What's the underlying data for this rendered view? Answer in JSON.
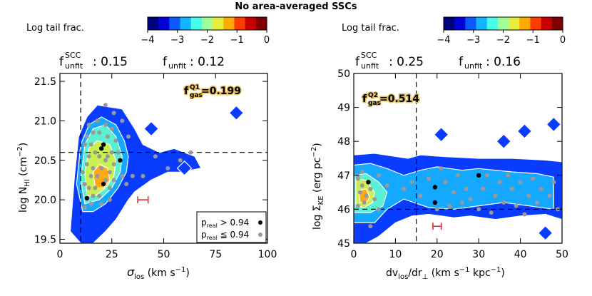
{
  "figure_title": "No area-averaged SSCs",
  "colorbar": {
    "label": "Log tail frac.",
    "ticks": [
      "−4",
      "−3",
      "−2",
      "−1",
      "0"
    ],
    "colors": [
      "#00007f",
      "#0000d8",
      "#0a5aff",
      "#14b4ff",
      "#46ffe6",
      "#a0ff96",
      "#e6f03c",
      "#ffaa00",
      "#ff3c00",
      "#c80000",
      "#7f0000"
    ]
  },
  "panels": [
    {
      "id": "left",
      "funfit_scc_label": "f",
      "funfit_scc_sup": "SCC",
      "funfit_scc_sub": "unfit",
      "funfit_scc_value": ": 0.15",
      "funfit_label": "f",
      "funfit_sub": "unfit",
      "funfit_value": ": 0.12",
      "fgas_label": "f",
      "fgas_sup": "Q1",
      "fgas_sub": "gas",
      "fgas_value": "=0.199",
      "legend": {
        "row1_main": "p",
        "row1_sub": "real",
        "row1_rest": " > 0.94",
        "row2_main": "p",
        "row2_sub": "real",
        "row2_rest": " ≦ 0.94"
      }
    },
    {
      "id": "right",
      "funfit_scc_label": "f",
      "funfit_scc_sup": "SCC",
      "funfit_scc_sub": "unfit",
      "funfit_scc_value": ": 0.25",
      "funfit_label": "f",
      "funfit_sub": "unfit",
      "funfit_value": ": 0.16",
      "fgas_label": "f",
      "fgas_sup": "Q2",
      "fgas_sub": "gas",
      "fgas_value": "=0.514"
    }
  ],
  "chart_data": [
    {
      "type": "scatter",
      "title": "",
      "xlabel": "σ_los (km s⁻¹)",
      "ylabel": "log N_HI (cm⁻²)",
      "xlabel_main": "σ",
      "xlabel_sub": "los",
      "xlabel_rest": " (km s",
      "xlabel_sup": "−1",
      "xlabel_close": ")",
      "ylabel_main": "log N",
      "ylabel_sub": "HI",
      "ylabel_rest": " (cm",
      "ylabel_sup": "−2",
      "ylabel_close": ")",
      "xlim": [
        0,
        100
      ],
      "ylim": [
        19.45,
        21.6
      ],
      "xticks": [
        0,
        25,
        50,
        75,
        100
      ],
      "xtick_labels": [
        "0",
        "25",
        "50",
        "75",
        "100"
      ],
      "yticks": [
        19.5,
        20.0,
        20.5,
        21.0,
        21.5
      ],
      "ytick_labels": [
        "19.5",
        "20.0",
        "20.5",
        "21.0",
        "21.5"
      ],
      "dashed_x": 10,
      "dashed_y": 20.6,
      "error_bar": {
        "x": 40,
        "y": 20.0,
        "xerr": 2.5
      },
      "contours": [
        {
          "level": -4.0,
          "poly": [
            [
              10,
              19.45
            ],
            [
              5,
              19.6
            ],
            [
              7,
              20.3
            ],
            [
              9,
              20.8
            ],
            [
              13,
              21.05
            ],
            [
              18,
              21.2
            ],
            [
              30,
              21.15
            ],
            [
              36,
              20.9
            ],
            [
              40,
              20.7
            ],
            [
              48,
              20.6
            ],
            [
              55,
              20.65
            ],
            [
              65,
              20.55
            ],
            [
              68,
              20.4
            ],
            [
              58,
              20.35
            ],
            [
              52,
              20.35
            ],
            [
              44,
              20.25
            ],
            [
              36,
              20.1
            ],
            [
              33,
              20.0
            ],
            [
              27,
              19.75
            ],
            [
              22,
              19.6
            ],
            [
              16,
              19.45
            ]
          ]
        },
        {
          "level": -3.0,
          "poly": [
            [
              11,
              19.85
            ],
            [
              8,
              20.2
            ],
            [
              10,
              20.7
            ],
            [
              14,
              20.95
            ],
            [
              20,
              21.05
            ],
            [
              27,
              20.95
            ],
            [
              31,
              20.75
            ],
            [
              33,
              20.55
            ],
            [
              32,
              20.35
            ],
            [
              28,
              20.15
            ],
            [
              22,
              19.95
            ],
            [
              16,
              19.85
            ]
          ]
        },
        {
          "level": -2.5,
          "poly": [
            [
              12,
              19.95
            ],
            [
              10,
              20.25
            ],
            [
              12,
              20.7
            ],
            [
              16,
              20.9
            ],
            [
              22,
              20.95
            ],
            [
              27,
              20.8
            ],
            [
              30,
              20.55
            ],
            [
              29,
              20.35
            ],
            [
              25,
              20.15
            ],
            [
              19,
              20.0
            ]
          ]
        },
        {
          "level": -2.0,
          "poly": [
            [
              13,
              20.05
            ],
            [
              12,
              20.35
            ],
            [
              14,
              20.65
            ],
            [
              18,
              20.75
            ],
            [
              24,
              20.7
            ],
            [
              27,
              20.5
            ],
            [
              26,
              20.3
            ],
            [
              22,
              20.15
            ],
            [
              17,
              20.05
            ]
          ]
        },
        {
          "level": -1.5,
          "poly": [
            [
              17,
              20.15
            ],
            [
              16,
              20.35
            ],
            [
              19,
              20.45
            ],
            [
              23,
              20.4
            ],
            [
              24,
              20.25
            ],
            [
              21,
              20.15
            ]
          ]
        }
      ],
      "isolated_cells": [
        {
          "x": 85,
          "y": 21.1,
          "level": -4.0
        },
        {
          "x": 44,
          "y": 20.9,
          "level": -4.0
        },
        {
          "x": 60,
          "y": 20.4,
          "level": -4.0
        }
      ],
      "points_high": [
        [
          20,
          20.65
        ],
        [
          21,
          20.7
        ],
        [
          29,
          20.5
        ],
        [
          13,
          20.02
        ],
        [
          21,
          20.2
        ]
      ],
      "points_low": [
        [
          22,
          21.2
        ],
        [
          26,
          21.1
        ],
        [
          30,
          21.0
        ],
        [
          18,
          21.0
        ],
        [
          22,
          20.95
        ],
        [
          25,
          20.9
        ],
        [
          14,
          20.95
        ],
        [
          16,
          20.85
        ],
        [
          19,
          20.85
        ],
        [
          13,
          20.8
        ],
        [
          23,
          20.8
        ],
        [
          27,
          20.75
        ],
        [
          12,
          20.7
        ],
        [
          15,
          20.7
        ],
        [
          17,
          20.6
        ],
        [
          25,
          20.6
        ],
        [
          28,
          20.6
        ],
        [
          14,
          20.55
        ],
        [
          19,
          20.55
        ],
        [
          22,
          20.5
        ],
        [
          26,
          20.45
        ],
        [
          13,
          20.45
        ],
        [
          16,
          20.4
        ],
        [
          20,
          20.4
        ],
        [
          24,
          20.35
        ],
        [
          11,
          20.35
        ],
        [
          15,
          20.3
        ],
        [
          18,
          20.3
        ],
        [
          22,
          20.25
        ],
        [
          26,
          20.25
        ],
        [
          12,
          20.2
        ],
        [
          14,
          20.15
        ],
        [
          17,
          20.15
        ],
        [
          24,
          20.15
        ],
        [
          16,
          20.05
        ],
        [
          19,
          20.05
        ],
        [
          12,
          19.9
        ],
        [
          15,
          19.95
        ],
        [
          32,
          20.2
        ],
        [
          35,
          20.3
        ],
        [
          40,
          20.3
        ],
        [
          46,
          20.55
        ],
        [
          52,
          20.4
        ],
        [
          58,
          20.5
        ],
        [
          63,
          20.6
        ],
        [
          33,
          20.8
        ],
        [
          30,
          20.3
        ],
        [
          24,
          20.0
        ],
        [
          20,
          19.95
        ],
        [
          23,
          20.55
        ]
      ]
    },
    {
      "type": "scatter",
      "title": "",
      "xlabel": "dv_los/dr_⊥ (km s⁻¹ kpc⁻¹)",
      "ylabel": "log Σ_KE (erg pc⁻²)",
      "xlabel_main": "dv",
      "xlabel_sub": "los",
      "xlabel_mid": "/dr",
      "xlabel_sub2": "⊥",
      "xlabel_rest": " (km s",
      "xlabel_sup": "−1",
      "xlabel_rest2": " kpc",
      "xlabel_sup2": "−1",
      "xlabel_close": ")",
      "ylabel_main": "log Σ",
      "ylabel_sub": "KE",
      "ylabel_rest": " (erg pc",
      "ylabel_sup": "−2",
      "ylabel_close": ")",
      "xlim": [
        0,
        50
      ],
      "ylim": [
        45.0,
        50.0
      ],
      "xticks": [
        0,
        10,
        20,
        30,
        40,
        50
      ],
      "xtick_labels": [
        "0",
        "10",
        "20",
        "30",
        "40",
        "50"
      ],
      "yticks": [
        45,
        46,
        47,
        48,
        49,
        50
      ],
      "ytick_labels": [
        "45",
        "46",
        "47",
        "48",
        "49",
        "50"
      ],
      "dashed_x": 15,
      "dashed_y": 46.0,
      "error_bar": {
        "x": 20,
        "y": 45.5,
        "xerr": 1.0
      },
      "contours": [
        {
          "level": -4.0,
          "poly": [
            [
              0,
              45.0
            ],
            [
              0,
              47.6
            ],
            [
              5,
              47.65
            ],
            [
              13,
              47.5
            ],
            [
              16,
              47.6
            ],
            [
              22,
              47.55
            ],
            [
              30,
              47.5
            ],
            [
              38,
              47.5
            ],
            [
              46,
              47.45
            ],
            [
              50,
              47.4
            ],
            [
              50,
              45.7
            ],
            [
              46,
              45.85
            ],
            [
              40,
              45.8
            ],
            [
              34,
              45.7
            ],
            [
              28,
              45.8
            ],
            [
              24,
              45.75
            ],
            [
              18,
              45.85
            ],
            [
              14,
              45.8
            ],
            [
              10,
              45.6
            ],
            [
              6,
              45.2
            ],
            [
              3,
              45.0
            ]
          ]
        },
        {
          "level": -3.0,
          "poly": [
            [
              0,
              45.6
            ],
            [
              0,
              47.3
            ],
            [
              4,
              47.35
            ],
            [
              8,
              47.2
            ],
            [
              12,
              47.0
            ],
            [
              16,
              47.15
            ],
            [
              20,
              47.25
            ],
            [
              26,
              47.15
            ],
            [
              30,
              47.2
            ],
            [
              38,
              47.1
            ],
            [
              44,
              47.05
            ],
            [
              48,
              46.95
            ],
            [
              48,
              46.0
            ],
            [
              42,
              46.1
            ],
            [
              36,
              46.2
            ],
            [
              30,
              46.1
            ],
            [
              24,
              46.0
            ],
            [
              18,
              46.05
            ],
            [
              12,
              46.3
            ],
            [
              8,
              46.0
            ],
            [
              5,
              45.6
            ]
          ]
        },
        {
          "level": -2.5,
          "poly": [
            [
              0,
              45.9
            ],
            [
              0,
              47.0
            ],
            [
              3,
              47.05
            ],
            [
              6,
              46.8
            ],
            [
              8,
              46.5
            ],
            [
              7,
              46.1
            ],
            [
              4,
              45.9
            ]
          ]
        },
        {
          "level": -2.0,
          "poly": [
            [
              0.5,
              46.1
            ],
            [
              0.5,
              46.9
            ],
            [
              3,
              46.85
            ],
            [
              5,
              46.5
            ],
            [
              4.5,
              46.2
            ],
            [
              2.5,
              46.05
            ]
          ]
        },
        {
          "level": -1.5,
          "poly": [
            [
              1.5,
              46.2
            ],
            [
              1.2,
              46.55
            ],
            [
              3,
              46.6
            ],
            [
              3.8,
              46.35
            ],
            [
              3,
              46.2
            ]
          ]
        }
      ],
      "isolated_cells": [
        {
          "x": 21,
          "y": 48.2,
          "level": -4.0
        },
        {
          "x": 36,
          "y": 48.0,
          "level": -4.0
        },
        {
          "x": 41,
          "y": 48.3,
          "level": -4.0
        },
        {
          "x": 48,
          "y": 48.5,
          "level": -4.0
        },
        {
          "x": 46,
          "y": 45.3,
          "level": -4.0
        }
      ],
      "points_high": [
        [
          3.5,
          46.8
        ],
        [
          19.5,
          46.65
        ],
        [
          19.5,
          46.2
        ],
        [
          30,
          47.0
        ]
      ],
      "points_low": [
        [
          1,
          46.9
        ],
        [
          2,
          46.7
        ],
        [
          1.5,
          46.5
        ],
        [
          3,
          46.4
        ],
        [
          2.5,
          46.2
        ],
        [
          1,
          46.1
        ],
        [
          4,
          46.6
        ],
        [
          5,
          46.3
        ],
        [
          6,
          46.0
        ],
        [
          1,
          47.0
        ],
        [
          2,
          47.1
        ],
        [
          6,
          47.0
        ],
        [
          4,
          45.5
        ],
        [
          8,
          46.7
        ],
        [
          12,
          46.6
        ],
        [
          14,
          46.8
        ],
        [
          18,
          46.9
        ],
        [
          21,
          47.2
        ],
        [
          22,
          46.8
        ],
        [
          24,
          46.5
        ],
        [
          25,
          47.0
        ],
        [
          27,
          46.6
        ],
        [
          28,
          46.3
        ],
        [
          30,
          46.0
        ],
        [
          31,
          46.6
        ],
        [
          32,
          47.0
        ],
        [
          34,
          46.4
        ],
        [
          35,
          46.8
        ],
        [
          36,
          46.2
        ],
        [
          37,
          47.0
        ],
        [
          38,
          46.6
        ],
        [
          39,
          46.1
        ],
        [
          40,
          46.8
        ],
        [
          42,
          46.4
        ],
        [
          43,
          46.9
        ],
        [
          44,
          46.2
        ],
        [
          45,
          46.6
        ],
        [
          47,
          46.4
        ],
        [
          48,
          46.8
        ],
        [
          49,
          46.0
        ],
        [
          20,
          46.0
        ],
        [
          26,
          46.2
        ],
        [
          33,
          45.9
        ],
        [
          41,
          45.85
        ],
        [
          16,
          46.4
        ],
        [
          23,
          46.1
        ]
      ]
    }
  ]
}
